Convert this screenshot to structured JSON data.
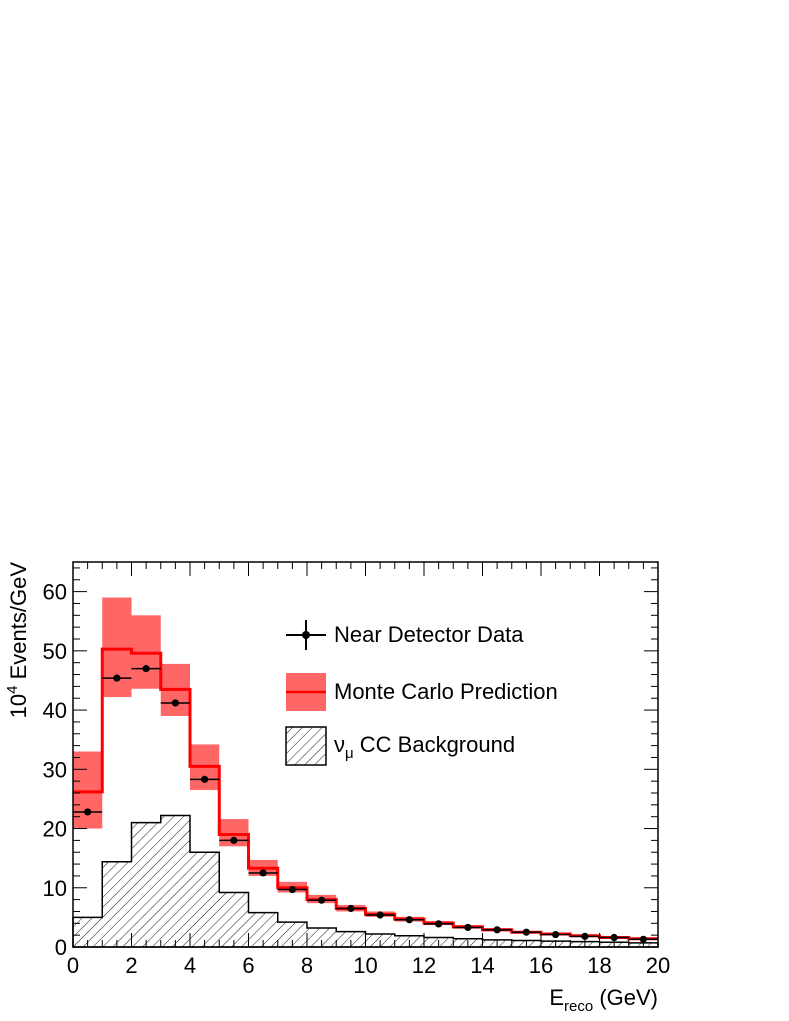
{
  "chart_data": {
    "type": "bar",
    "xlabel": {
      "main": "E",
      "sub": "reco",
      "rest": " (GeV)"
    },
    "ylabel": {
      "base": "10",
      "sup": "4",
      "rest": " Events/GeV"
    },
    "xlim": [
      0,
      20
    ],
    "ylim": [
      0,
      65
    ],
    "xticks": [
      0,
      2,
      4,
      6,
      8,
      10,
      12,
      14,
      16,
      18,
      20
    ],
    "yticks": [
      0,
      10,
      20,
      30,
      40,
      50,
      60
    ],
    "bin_edges": [
      0,
      1,
      2,
      3,
      4,
      5,
      6,
      7,
      8,
      9,
      10,
      11,
      12,
      13,
      14,
      15,
      16,
      17,
      18,
      19,
      20
    ],
    "series": [
      {
        "name": "Monte Carlo Prediction",
        "kind": "step-with-band",
        "color": "#ff0000",
        "band_color": "#ff6666",
        "values": [
          26.2,
          50.3,
          49.6,
          43.5,
          30.5,
          19.0,
          13.3,
          10.0,
          8.0,
          6.5,
          5.5,
          4.7,
          4.0,
          3.4,
          2.9,
          2.5,
          2.2,
          1.9,
          1.6,
          1.4
        ],
        "band_low": [
          20.0,
          42.2,
          43.6,
          39.0,
          26.5,
          17.0,
          12.0,
          9.2,
          7.4,
          6.0,
          5.1,
          4.3,
          3.7,
          3.1,
          2.7,
          2.3,
          2.0,
          1.7,
          1.4,
          1.2
        ],
        "band_high": [
          33.0,
          59.0,
          56.0,
          47.8,
          34.2,
          21.6,
          14.7,
          11.0,
          8.8,
          7.1,
          6.0,
          5.1,
          4.4,
          3.7,
          3.2,
          2.7,
          2.4,
          2.1,
          1.8,
          1.6
        ]
      },
      {
        "name": "Near Detector Data",
        "kind": "points",
        "color": "#000000",
        "x": [
          0.5,
          1.5,
          2.5,
          3.5,
          4.5,
          5.5,
          6.5,
          7.5,
          8.5,
          9.5,
          10.5,
          11.5,
          12.5,
          13.5,
          14.5,
          15.5,
          16.5,
          17.5,
          18.5,
          19.5
        ],
        "values": [
          22.8,
          45.4,
          47.0,
          41.2,
          28.3,
          18.0,
          12.5,
          9.7,
          7.9,
          6.5,
          5.4,
          4.6,
          3.9,
          3.3,
          2.9,
          2.5,
          2.1,
          1.8,
          1.6,
          1.3
        ]
      },
      {
        "name": "CC Background",
        "kind": "hatched-step",
        "color": "#000000",
        "values": [
          5.0,
          14.4,
          21.0,
          22.2,
          16.0,
          9.2,
          5.8,
          4.2,
          3.2,
          2.6,
          2.2,
          1.9,
          1.6,
          1.4,
          1.2,
          1.1,
          1.0,
          0.9,
          0.8,
          0.7
        ]
      }
    ],
    "legend": {
      "position": "top-right",
      "entries": [
        {
          "label": "Near Detector Data",
          "symbol": "point"
        },
        {
          "label": "Monte Carlo Prediction",
          "symbol": "band-line"
        },
        {
          "label_prefix": "ν",
          "label_sub": "μ",
          "label_rest": " CC Background",
          "symbol": "hatch"
        }
      ]
    }
  }
}
